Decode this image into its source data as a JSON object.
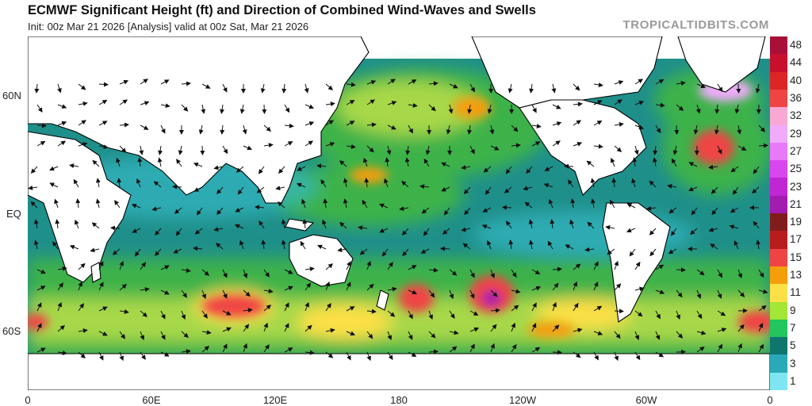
{
  "header": {
    "title": "ECMWF Significant Height (ft) and Direction of Combined Wind-Waves and Swells",
    "subtitle": "Init: 00z Mar 21 2026   [Analysis]   valid at 00z Sat, Mar 21 2026",
    "credit": "TROPICALTIDBITS.COM"
  },
  "axes": {
    "lat_labels": [
      "60N",
      "EQ",
      "60S"
    ],
    "lon_labels": [
      "0",
      "60E",
      "120E",
      "180",
      "120W",
      "60W",
      "0"
    ]
  },
  "colorbar": {
    "levels": [
      "48",
      "44",
      "40",
      "36",
      "32",
      "29",
      "27",
      "25",
      "23",
      "21",
      "19",
      "17",
      "15",
      "13",
      "11",
      "9",
      "7",
      "5",
      "3",
      "1"
    ],
    "colors": [
      "#a8103a",
      "#c8102e",
      "#dc2626",
      "#ef4444",
      "#f9a8d4",
      "#f0abfc",
      "#e879f9",
      "#d946ef",
      "#c026d3",
      "#a21caf",
      "#7f1d1d",
      "#b91c1c",
      "#ef4444",
      "#f59e0b",
      "#fde047",
      "#a3e635",
      "#22c55e",
      "#0f766e",
      "#2aa9b8",
      "#7ee6f0"
    ]
  },
  "map": {
    "land_color": "#ffffff",
    "border_color": "#000000"
  }
}
